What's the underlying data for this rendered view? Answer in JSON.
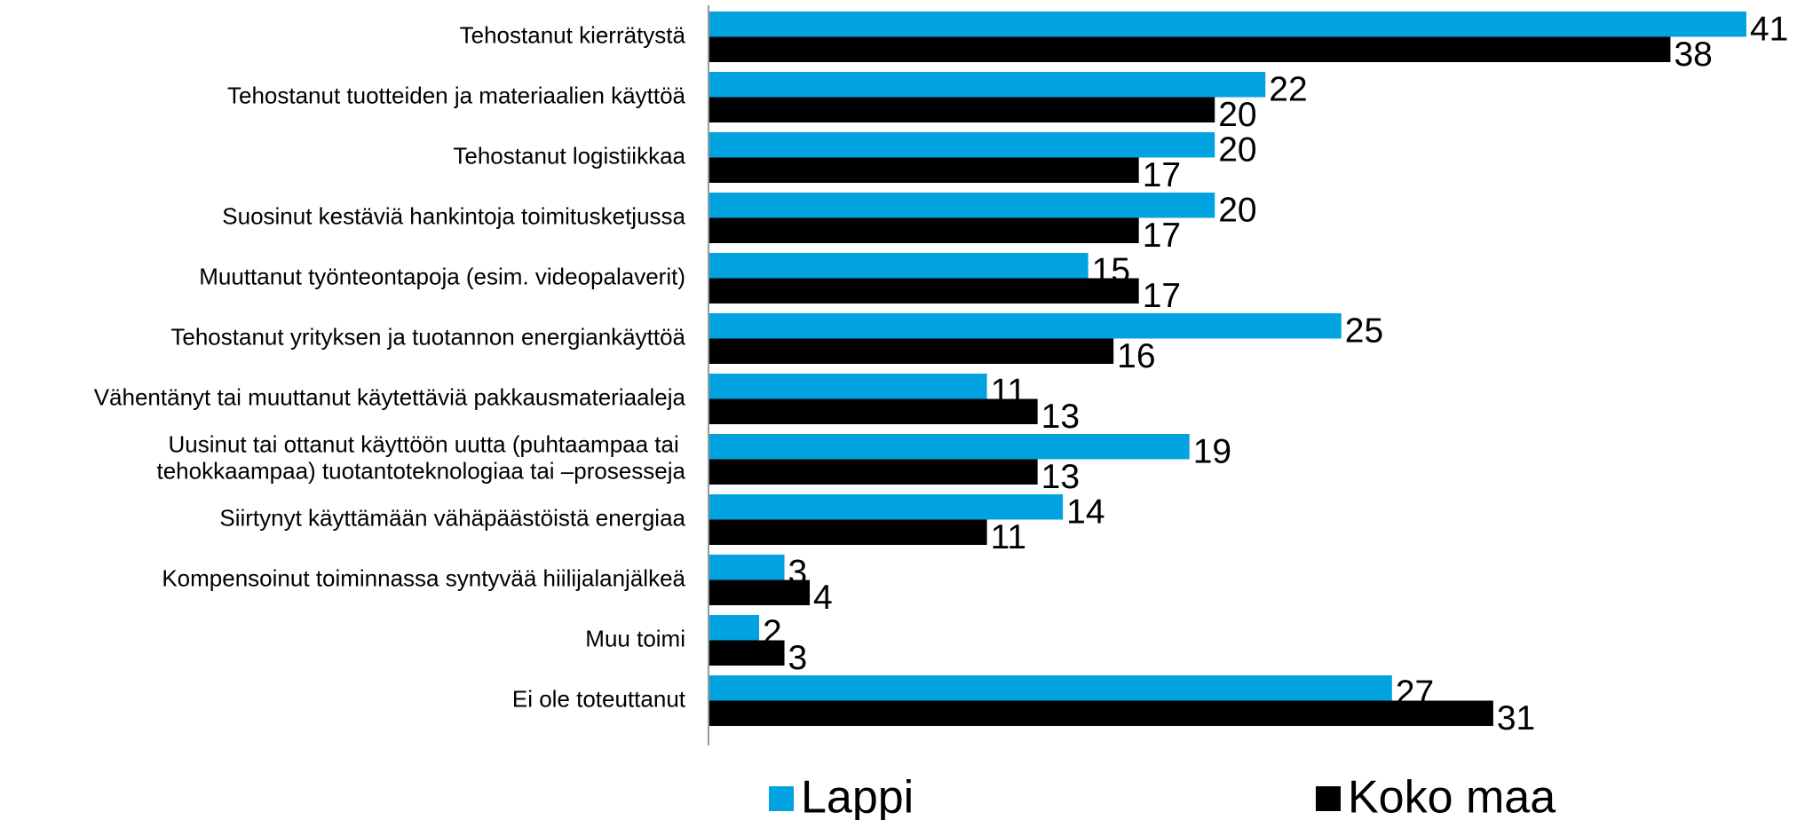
{
  "chart_data": {
    "type": "bar",
    "orientation": "horizontal",
    "categories": [
      "Tehostanut kierrätystä",
      "Tehostanut tuotteiden ja materiaalien käyttöä",
      "Tehostanut logistiikkaa",
      "Suosinut kestäviä hankintoja toimitusketjussa",
      "Muuttanut työnteontapoja (esim. videopalaverit)",
      "Tehostanut yrityksen ja tuotannon energiankäyttöä",
      "Vähentänyt tai muuttanut käytettäviä pakkausmateriaaleja",
      "Uusinut tai ottanut käyttöön uutta (puhtaampaa tai \ntehokkaampaa) tuotantoteknologiaa tai –prosesseja",
      "Siirtynyt käyttämään vähäpäästöistä energiaa",
      "Kompensoinut toiminnassa syntyvää hiilijalanjälkeä",
      "Muu toimi",
      "Ei ole toteuttanut"
    ],
    "series": [
      {
        "name": "Lappi",
        "color": "#00a3e0",
        "values": [
          41,
          22,
          20,
          20,
          15,
          25,
          11,
          19,
          14,
          3,
          2,
          27
        ]
      },
      {
        "name": "Koko maa",
        "color": "#000000",
        "values": [
          38,
          20,
          17,
          17,
          17,
          16,
          13,
          13,
          11,
          4,
          3,
          31
        ]
      }
    ],
    "xlim": [
      0,
      43
    ],
    "legend": "bottom"
  }
}
